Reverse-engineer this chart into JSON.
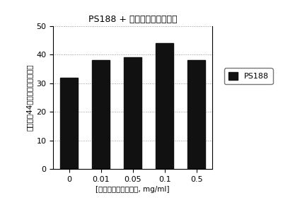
{
  "title": "PS188 + ペントキシフィリン",
  "categories": [
    "0",
    "0.01",
    "0.05",
    "0.1",
    "0.5"
  ],
  "values": [
    32,
    38,
    39,
    44,
    38
  ],
  "bar_color": "#111111",
  "ylabel": "エキソン44スキッピングの割合",
  "xlabel": "[ペントキシフィリン, mg/ml]",
  "ylim": [
    0,
    50
  ],
  "yticks": [
    0,
    10,
    20,
    30,
    40,
    50
  ],
  "legend_label": "PS188",
  "title_fontsize": 9,
  "axis_fontsize": 7.5,
  "tick_fontsize": 8,
  "legend_fontsize": 8,
  "background_color": "#ffffff",
  "grid_color": "#999999"
}
